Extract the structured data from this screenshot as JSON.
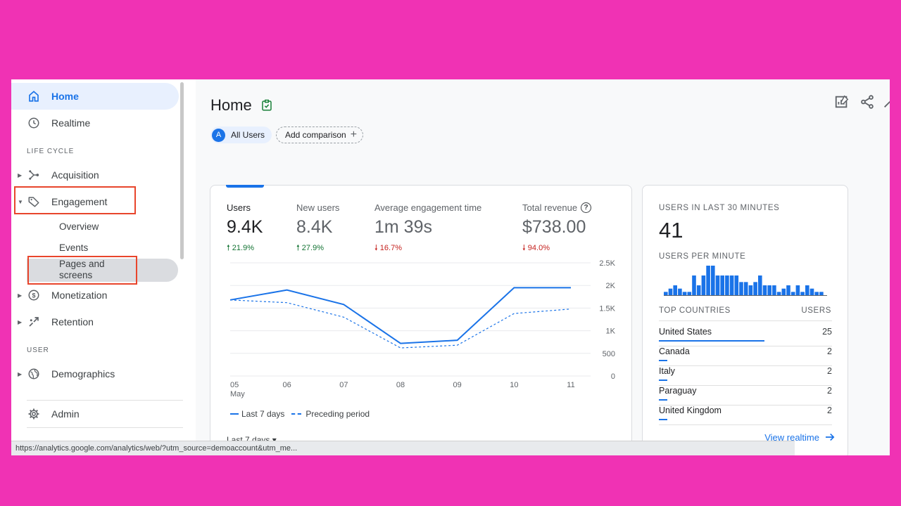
{
  "sidebar": {
    "home": "Home",
    "realtime": "Realtime",
    "section_lifecycle": "LIFE CYCLE",
    "acquisition": "Acquisition",
    "engagement": "Engagement",
    "sub_overview": "Overview",
    "sub_events": "Events",
    "sub_pages": "Pages and screens",
    "monetization": "Monetization",
    "retention": "Retention",
    "section_user": "USER",
    "demographics": "Demographics",
    "admin": "Admin"
  },
  "header": {
    "title": "Home",
    "chip_all_users_avatar": "A",
    "chip_all_users": "All Users",
    "add_comparison": "Add comparison"
  },
  "metrics": [
    {
      "label": "Users",
      "value": "9.4K",
      "change": "21.9%",
      "direction": "up"
    },
    {
      "label": "New users",
      "value": "8.4K",
      "change": "27.9%",
      "direction": "up"
    },
    {
      "label": "Average engagement time",
      "value": "1m 39s",
      "change": "16.7%",
      "direction": "down"
    },
    {
      "label": "Total revenue",
      "value": "$738.00",
      "change": "94.0%",
      "direction": "down"
    }
  ],
  "chart_data": {
    "type": "line",
    "x": [
      "05",
      "06",
      "07",
      "08",
      "09",
      "10",
      "11"
    ],
    "x_sublabel": "May",
    "y_ticks": [
      "2.5K",
      "2K",
      "1.5K",
      "1K",
      "500",
      "0"
    ],
    "ylim": [
      0,
      2500
    ],
    "series": [
      {
        "name": "Last 7 days",
        "style": "solid",
        "values": [
          1680,
          1900,
          1580,
          720,
          790,
          1950,
          1950
        ]
      },
      {
        "name": "Preceding period",
        "style": "dashed",
        "values": [
          1680,
          1620,
          1300,
          620,
          680,
          1380,
          1480
        ]
      }
    ],
    "legend": [
      "Last 7 days",
      "Preceding period"
    ],
    "color": "#1a73e8"
  },
  "date_range": "Last 7 days",
  "realtime": {
    "title": "USERS IN LAST 30 MINUTES",
    "count": "41",
    "per_minute_label": "USERS PER MINUTE",
    "per_minute_values": [
      1,
      2,
      3,
      2,
      1,
      1,
      6,
      3,
      6,
      9,
      9,
      6,
      6,
      6,
      6,
      6,
      4,
      4,
      3,
      4,
      6,
      3,
      3,
      3,
      1,
      2,
      3,
      1,
      3,
      1,
      3,
      2,
      1,
      1
    ],
    "countries_header": "TOP COUNTRIES",
    "users_header": "USERS",
    "countries": [
      {
        "name": "United States",
        "users": "25",
        "share": 1.0
      },
      {
        "name": "Canada",
        "users": "2",
        "share": 0.08
      },
      {
        "name": "Italy",
        "users": "2",
        "share": 0.08
      },
      {
        "name": "Paraguay",
        "users": "2",
        "share": 0.08
      },
      {
        "name": "United Kingdom",
        "users": "2",
        "share": 0.08
      }
    ],
    "view_link": "View realtime"
  },
  "status_url": "https://analytics.google.com/analytics/web/?utm_source=demoaccount&utm_me..."
}
